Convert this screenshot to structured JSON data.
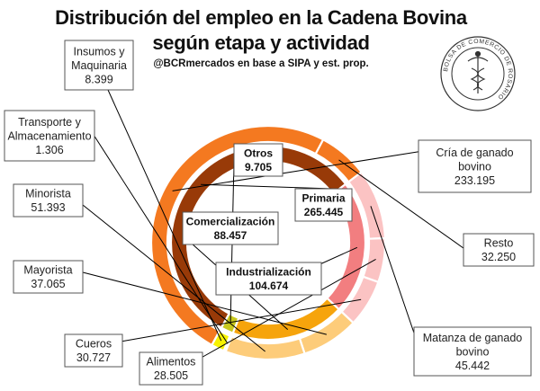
{
  "header": {
    "title_line1": "Distribución del empleo en la Cadena Bovina",
    "title_line2": "según etapa y actividad",
    "source": "@BCRmercados en base a SIPA y est. prop.",
    "logo_text": "BOLSA DE COMERCIO DE ROSARIO"
  },
  "chart_data": {
    "type": "donut",
    "title": "Distribución del empleo en la Cadena Bovina según etapa y actividad",
    "inner_ring": {
      "name": "Etapa",
      "categories": [
        "Primaria",
        "Industrialización",
        "Comercialización",
        "Otros"
      ],
      "values": [
        265.445,
        104.674,
        88.457,
        9.705
      ],
      "labels": [
        "265.445",
        "104.674",
        "88.457",
        "9.705"
      ],
      "colors": [
        "#983A08",
        "#F27E80",
        "#F6A40C",
        "#C8C81E"
      ]
    },
    "outer_ring": {
      "name": "Actividad",
      "categories": [
        "Cría de ganado bovino",
        "Resto",
        "Matanza de ganado bovino",
        "Alimentos",
        "Cueros",
        "Mayorista",
        "Minorista",
        "Transporte y Almacenamiento",
        "Insumos y Maquinaria"
      ],
      "values": [
        233.195,
        32.25,
        45.442,
        28.505,
        30.727,
        37.065,
        51.393,
        1.306,
        8.399
      ],
      "labels": [
        "233.195",
        "32.250",
        "45.442",
        "28.505",
        "30.727",
        "37.065",
        "51.393",
        "1.306",
        "8.399"
      ],
      "colors": [
        "#F47920",
        "#F47920",
        "#FBC3C3",
        "#FBC3C3",
        "#FBC3C3",
        "#FDCC7A",
        "#FDCC7A",
        "#F2E84C",
        "#F7F300"
      ]
    },
    "label_lines": {
      "Cría de ganado bovino": [
        "Cría de ganado",
        "bovino"
      ],
      "Resto": [
        "Resto"
      ],
      "Matanza de ganado bovino": [
        "Matanza de ganado",
        "bovino"
      ],
      "Alimentos": [
        "Alimentos"
      ],
      "Cueros": [
        "Cueros"
      ],
      "Mayorista": [
        "Mayorista"
      ],
      "Minorista": [
        "Minorista"
      ],
      "Transporte y Almacenamiento": [
        "Transporte y",
        "Almacenamiento"
      ],
      "Insumos y Maquinaria": [
        "Insumos y",
        "Maquinaria"
      ]
    }
  }
}
